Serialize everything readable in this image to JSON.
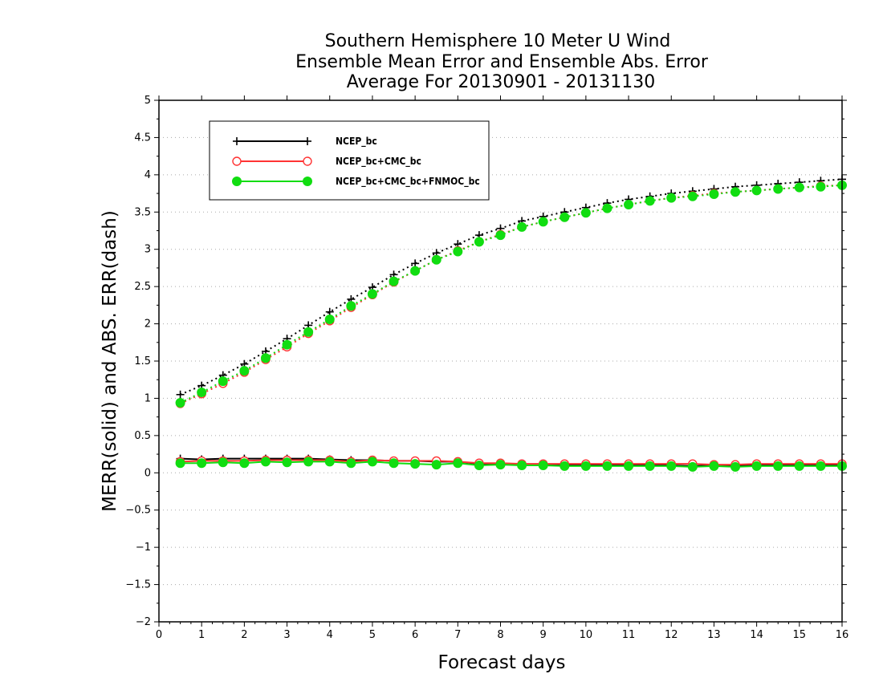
{
  "chart_data": {
    "type": "line",
    "title_lines": [
      "Southern Hemisphere 10 Meter U Wind",
      "Ensemble Mean Error and Ensemble Abs. Error",
      "Average For 20130901 - 20131130"
    ],
    "xlabel": "Forecast days",
    "ylabel": "MERR(solid) and ABS. ERR(dash)",
    "xlim": [
      0,
      16
    ],
    "ylim": [
      -2,
      5
    ],
    "x_ticks": [
      0,
      1,
      2,
      3,
      4,
      5,
      6,
      7,
      8,
      9,
      10,
      11,
      12,
      13,
      14,
      15,
      16
    ],
    "y_ticks": [
      -2,
      -1.5,
      -1,
      -0.5,
      0,
      0.5,
      1,
      1.5,
      2,
      2.5,
      3,
      3.5,
      4,
      4.5,
      5
    ],
    "grid": "horizontal dotted",
    "legend_position": "top-left",
    "x": [
      0.5,
      1,
      1.5,
      2,
      2.5,
      3,
      3.5,
      4,
      4.5,
      5,
      5.5,
      6,
      6.5,
      7,
      7.5,
      8,
      8.5,
      9,
      9.5,
      10,
      10.5,
      11,
      11.5,
      12,
      12.5,
      13,
      13.5,
      14,
      14.5,
      15,
      15.5,
      16
    ],
    "series": [
      {
        "name": "NCEP_bc",
        "color": "#000000",
        "marker": "plus",
        "abs_err": [
          1.05,
          1.17,
          1.31,
          1.46,
          1.63,
          1.8,
          1.98,
          2.16,
          2.33,
          2.49,
          2.66,
          2.81,
          2.95,
          3.07,
          3.19,
          3.28,
          3.38,
          3.44,
          3.5,
          3.56,
          3.62,
          3.67,
          3.71,
          3.75,
          3.78,
          3.81,
          3.84,
          3.86,
          3.88,
          3.9,
          3.92,
          3.94
        ],
        "mean_err": [
          0.19,
          0.18,
          0.19,
          0.19,
          0.19,
          0.19,
          0.19,
          0.18,
          0.17,
          0.17,
          0.16,
          0.16,
          0.15,
          0.15,
          0.12,
          0.12,
          0.11,
          0.11,
          0.1,
          0.1,
          0.1,
          0.1,
          0.1,
          0.1,
          0.09,
          0.1,
          0.1,
          0.1,
          0.1,
          0.1,
          0.1,
          0.1
        ]
      },
      {
        "name": "NCEP_bc+CMC_bc",
        "color": "#ff3333",
        "marker": "open-circle",
        "abs_err": [
          0.93,
          1.06,
          1.2,
          1.35,
          1.52,
          1.69,
          1.87,
          2.04,
          2.22,
          2.39,
          2.56,
          2.71,
          2.86,
          2.98,
          3.1,
          3.2,
          3.3,
          3.37,
          3.43,
          3.49,
          3.55,
          3.6,
          3.65,
          3.69,
          3.72,
          3.75,
          3.77,
          3.79,
          3.81,
          3.83,
          3.85,
          3.86
        ],
        "mean_err": [
          0.15,
          0.16,
          0.16,
          0.16,
          0.17,
          0.17,
          0.17,
          0.17,
          0.15,
          0.17,
          0.16,
          0.16,
          0.16,
          0.15,
          0.13,
          0.13,
          0.12,
          0.12,
          0.12,
          0.12,
          0.12,
          0.12,
          0.12,
          0.12,
          0.12,
          0.11,
          0.11,
          0.12,
          0.12,
          0.12,
          0.12,
          0.12
        ]
      },
      {
        "name": "NCEP_bc+CMC_bc+FNMOC_bc",
        "color": "#11dd11",
        "marker": "filled-circle",
        "abs_err": [
          0.94,
          1.08,
          1.23,
          1.37,
          1.54,
          1.72,
          1.89,
          2.06,
          2.24,
          2.4,
          2.57,
          2.71,
          2.86,
          2.97,
          3.1,
          3.19,
          3.3,
          3.37,
          3.43,
          3.49,
          3.55,
          3.6,
          3.65,
          3.69,
          3.71,
          3.74,
          3.77,
          3.79,
          3.81,
          3.83,
          3.84,
          3.86
        ],
        "mean_err": [
          0.13,
          0.13,
          0.14,
          0.13,
          0.15,
          0.14,
          0.15,
          0.15,
          0.13,
          0.15,
          0.13,
          0.12,
          0.11,
          0.13,
          0.1,
          0.11,
          0.1,
          0.1,
          0.09,
          0.09,
          0.09,
          0.09,
          0.09,
          0.09,
          0.08,
          0.09,
          0.08,
          0.09,
          0.09,
          0.09,
          0.09,
          0.09
        ]
      }
    ]
  }
}
